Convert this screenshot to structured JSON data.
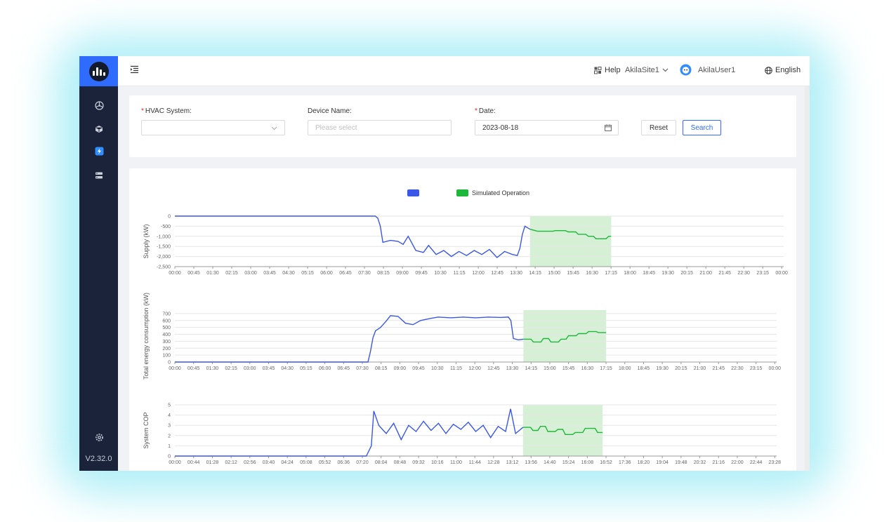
{
  "app": {
    "version": "V2.32.0",
    "colors": {
      "sidebar": "#1a2339",
      "accent": "#2f6bff",
      "actual": "#3a57e8",
      "simulated": "#1db83a",
      "sim_band": "#d6f0d6"
    }
  },
  "sidebar": {
    "items": [
      {
        "icon": "hvac-fan-icon"
      },
      {
        "icon": "device-cube-icon"
      },
      {
        "icon": "energy-bolt-icon",
        "active": true
      },
      {
        "icon": "server-rack-icon"
      }
    ],
    "settings_icon": "gear-icon"
  },
  "header": {
    "collapse_icon": "menu-collapse-icon",
    "help_label": "Help",
    "site_label": "AkilaSite1",
    "user_label": "AkilaUser1",
    "language_label": "English"
  },
  "filters": {
    "hvac_label": "HVAC System:",
    "hvac_value": "",
    "device_label": "Device Name:",
    "device_placeholder": "Please select",
    "date_label": "Date:",
    "date_value": "2023-08-18",
    "reset_label": "Reset",
    "search_label": "Search"
  },
  "legend": {
    "actual_label": "",
    "simulated_label": "Simulated Operation"
  },
  "chart_data": [
    {
      "type": "line",
      "ylabel": "Supply (kW)",
      "ylim": [
        -2500,
        0
      ],
      "yticks": [
        "0",
        "-500",
        "-1,000",
        "-1,500",
        "-2,000",
        "-2,500"
      ],
      "xticks": [
        "00:00",
        "00:45",
        "01:30",
        "02:15",
        "03:00",
        "03:45",
        "04:30",
        "05:15",
        "06:00",
        "06:45",
        "07:30",
        "08:15",
        "09:00",
        "09:45",
        "10:30",
        "11:15",
        "12:00",
        "12:45",
        "13:30",
        "14:15",
        "15:00",
        "15:45",
        "16:30",
        "17:15",
        "18:00",
        "18:45",
        "19:30",
        "20:15",
        "21:00",
        "21:45",
        "22:30",
        "23:15",
        "00:00"
      ],
      "xlim_hours": [
        0,
        24
      ],
      "simulated_window_hours": [
        14.0,
        17.2
      ],
      "series": [
        {
          "name": "",
          "points": [
            [
              0,
              0
            ],
            [
              7.9,
              0
            ],
            [
              8.0,
              -100
            ],
            [
              8.1,
              -500
            ],
            [
              8.2,
              -1300
            ],
            [
              8.5,
              -1200
            ],
            [
              8.8,
              -1250
            ],
            [
              9.0,
              -1400
            ],
            [
              9.2,
              -1000
            ],
            [
              9.5,
              -1700
            ],
            [
              9.8,
              -1800
            ],
            [
              10.0,
              -1450
            ],
            [
              10.3,
              -1900
            ],
            [
              10.6,
              -1700
            ],
            [
              10.9,
              -2000
            ],
            [
              11.2,
              -1750
            ],
            [
              11.5,
              -1950
            ],
            [
              11.8,
              -1700
            ],
            [
              12.1,
              -1900
            ],
            [
              12.4,
              -1650
            ],
            [
              12.7,
              -2050
            ],
            [
              13.0,
              -1750
            ],
            [
              13.3,
              -1900
            ],
            [
              13.5,
              -1950
            ],
            [
              13.6,
              -1600
            ],
            [
              13.7,
              -900
            ],
            [
              13.8,
              -500
            ],
            [
              14.0,
              -650
            ]
          ]
        },
        {
          "name": "Simulated Operation",
          "points": [
            [
              14.0,
              -650
            ],
            [
              14.3,
              -750
            ],
            [
              14.9,
              -750
            ],
            [
              15.0,
              -720
            ],
            [
              15.4,
              -720
            ],
            [
              15.5,
              -780
            ],
            [
              15.8,
              -780
            ],
            [
              15.9,
              -900
            ],
            [
              16.2,
              -900
            ],
            [
              16.3,
              -1000
            ],
            [
              16.5,
              -1000
            ],
            [
              16.6,
              -1120
            ],
            [
              17.0,
              -1120
            ],
            [
              17.1,
              -1000
            ],
            [
              17.2,
              -1000
            ]
          ]
        }
      ]
    },
    {
      "type": "line",
      "ylabel": "Total energy consumption (kW)",
      "ylim": [
        0,
        750
      ],
      "yticks": [
        "0",
        "100",
        "200",
        "300",
        "400",
        "500",
        "600",
        "700"
      ],
      "xticks": [
        "00:00",
        "00:45",
        "01:30",
        "02:15",
        "03:00",
        "03:45",
        "04:30",
        "05:15",
        "06:00",
        "06:45",
        "07:30",
        "08:15",
        "09:00",
        "09:45",
        "10:30",
        "11:15",
        "12:00",
        "12:45",
        "13:30",
        "14:15",
        "15:00",
        "15:45",
        "16:30",
        "17:15",
        "18:00",
        "18:45",
        "19:30",
        "20:15",
        "21:00",
        "21:45",
        "22:30",
        "23:15",
        "00:00"
      ],
      "xlim_hours": [
        0,
        24
      ],
      "simulated_window_hours": [
        13.9,
        17.2
      ],
      "series": [
        {
          "name": "",
          "points": [
            [
              0,
              0
            ],
            [
              7.7,
              0
            ],
            [
              7.8,
              150
            ],
            [
              7.9,
              350
            ],
            [
              8.0,
              450
            ],
            [
              8.2,
              500
            ],
            [
              8.4,
              580
            ],
            [
              8.6,
              670
            ],
            [
              8.9,
              660
            ],
            [
              9.2,
              560
            ],
            [
              9.5,
              540
            ],
            [
              9.8,
              600
            ],
            [
              10.2,
              630
            ],
            [
              10.5,
              650
            ],
            [
              11.0,
              640
            ],
            [
              11.5,
              650
            ],
            [
              12.0,
              640
            ],
            [
              12.5,
              650
            ],
            [
              13.0,
              645
            ],
            [
              13.3,
              650
            ],
            [
              13.4,
              600
            ],
            [
              13.5,
              340
            ],
            [
              13.7,
              320
            ],
            [
              13.9,
              330
            ]
          ]
        },
        {
          "name": "Simulated Operation",
          "points": [
            [
              13.9,
              330
            ],
            [
              14.2,
              330
            ],
            [
              14.3,
              290
            ],
            [
              14.6,
              290
            ],
            [
              14.7,
              340
            ],
            [
              14.9,
              340
            ],
            [
              15.0,
              290
            ],
            [
              15.3,
              290
            ],
            [
              15.4,
              330
            ],
            [
              15.6,
              330
            ],
            [
              15.7,
              380
            ],
            [
              16.0,
              380
            ],
            [
              16.1,
              410
            ],
            [
              16.4,
              410
            ],
            [
              16.5,
              440
            ],
            [
              16.8,
              440
            ],
            [
              16.9,
              425
            ],
            [
              17.2,
              425
            ]
          ]
        }
      ]
    },
    {
      "type": "line",
      "ylabel": "System COP",
      "ylim": [
        0,
        5
      ],
      "yticks": [
        "0",
        "1",
        "2",
        "3",
        "4",
        "5"
      ],
      "xticks": [
        "00:00",
        "00:44",
        "01:28",
        "02:12",
        "02:56",
        "03:40",
        "04:24",
        "05:08",
        "05:52",
        "06:36",
        "07:20",
        "08:04",
        "08:48",
        "09:32",
        "10:16",
        "11:00",
        "11:44",
        "12:28",
        "13:12",
        "13:56",
        "14:40",
        "15:24",
        "16:08",
        "16:52",
        "17:36",
        "18:20",
        "19:04",
        "19:48",
        "20:32",
        "21:16",
        "22:00",
        "22:44",
        "23:28"
      ],
      "xlim_hours": [
        0,
        24.2
      ],
      "simulated_window_hours": [
        14.0,
        17.2
      ],
      "series": [
        {
          "name": "",
          "points": [
            [
              0,
              0
            ],
            [
              7.7,
              0
            ],
            [
              7.9,
              1.0
            ],
            [
              8.0,
              4.4
            ],
            [
              8.2,
              3.0
            ],
            [
              8.5,
              2.2
            ],
            [
              8.8,
              3.2
            ],
            [
              9.1,
              1.6
            ],
            [
              9.4,
              3.0
            ],
            [
              9.7,
              2.4
            ],
            [
              10.0,
              3.4
            ],
            [
              10.3,
              2.5
            ],
            [
              10.6,
              3.2
            ],
            [
              10.9,
              2.2
            ],
            [
              11.2,
              3.1
            ],
            [
              11.5,
              2.6
            ],
            [
              11.8,
              3.3
            ],
            [
              12.1,
              2.4
            ],
            [
              12.4,
              3.0
            ],
            [
              12.7,
              1.8
            ],
            [
              13.0,
              2.9
            ],
            [
              13.3,
              2.4
            ],
            [
              13.5,
              4.6
            ],
            [
              13.7,
              2.2
            ],
            [
              14.0,
              2.8
            ]
          ]
        },
        {
          "name": "Simulated Operation",
          "points": [
            [
              14.0,
              2.8
            ],
            [
              14.3,
              2.8
            ],
            [
              14.4,
              2.5
            ],
            [
              14.6,
              2.5
            ],
            [
              14.7,
              2.9
            ],
            [
              14.9,
              2.9
            ],
            [
              15.0,
              2.4
            ],
            [
              15.3,
              2.4
            ],
            [
              15.4,
              2.6
            ],
            [
              15.6,
              2.6
            ],
            [
              15.7,
              2.1
            ],
            [
              16.0,
              2.1
            ],
            [
              16.1,
              2.3
            ],
            [
              16.4,
              2.3
            ],
            [
              16.5,
              2.7
            ],
            [
              16.9,
              2.7
            ],
            [
              17.0,
              2.3
            ],
            [
              17.2,
              2.3
            ]
          ]
        }
      ]
    }
  ]
}
